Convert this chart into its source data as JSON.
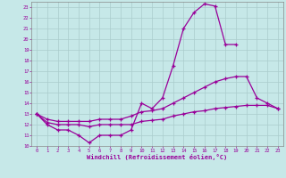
{
  "bg_color": "#c6e8e8",
  "line_color": "#990099",
  "grid_color": "#aacccc",
  "xlabel": "Windchill (Refroidissement éolien,°C)",
  "ylim": [
    10,
    23.5
  ],
  "xlim": [
    -0.5,
    23.5
  ],
  "yticks": [
    10,
    11,
    12,
    13,
    14,
    15,
    16,
    17,
    18,
    19,
    20,
    21,
    22,
    23
  ],
  "xticks": [
    0,
    1,
    2,
    3,
    4,
    5,
    6,
    7,
    8,
    9,
    10,
    11,
    12,
    13,
    14,
    15,
    16,
    17,
    18,
    19,
    20,
    21,
    22,
    23
  ],
  "curves": [
    {
      "x": [
        0,
        1,
        2,
        3,
        4,
        5,
        6,
        7,
        8,
        9,
        10,
        11,
        12,
        13,
        14,
        15,
        16,
        17,
        18,
        19
      ],
      "y": [
        13,
        12,
        11.5,
        11.5,
        11,
        10.3,
        11,
        11,
        11,
        11.5,
        14,
        13.5,
        14.5,
        17.5,
        21,
        22.5,
        23.3,
        23.1,
        19.5,
        19.5
      ]
    },
    {
      "x": [
        0,
        1,
        2,
        3,
        4,
        5,
        6,
        7,
        8,
        9,
        10,
        11,
        12,
        13,
        14,
        15,
        16,
        17,
        18,
        19,
        20,
        21,
        22,
        23
      ],
      "y": [
        13,
        12.5,
        12.3,
        12.3,
        12.3,
        12.3,
        12.5,
        12.5,
        12.5,
        12.8,
        13.2,
        13.3,
        13.5,
        14,
        14.5,
        15,
        15.5,
        16,
        16.3,
        16.5,
        16.5,
        14.5,
        14,
        13.5
      ]
    },
    {
      "x": [
        0,
        1,
        2,
        3,
        4,
        5,
        6,
        7,
        8,
        9,
        10,
        11,
        12,
        13,
        14,
        15,
        16,
        17,
        18,
        19,
        20,
        21,
        22,
        23
      ],
      "y": [
        13,
        12.2,
        12,
        12,
        12,
        11.8,
        12,
        12,
        12,
        12,
        12.3,
        12.4,
        12.5,
        12.8,
        13,
        13.2,
        13.3,
        13.5,
        13.6,
        13.7,
        13.8,
        13.8,
        13.8,
        13.5
      ]
    }
  ]
}
